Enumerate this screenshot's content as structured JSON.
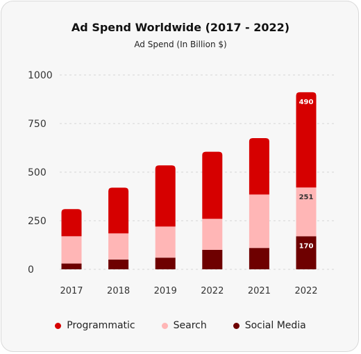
{
  "chart_data": {
    "type": "bar",
    "stacked": true,
    "title": "Ad Spend Worldwide (2017 - 2022)",
    "subtitle": "Ad Spend (In Billion $)",
    "categories": [
      "2017",
      "2018",
      "2019",
      "2022",
      "2021",
      "2022"
    ],
    "ylim": [
      0,
      1000
    ],
    "yticks": [
      0,
      250,
      500,
      750,
      1000
    ],
    "grid": true,
    "legend_position": "bottom",
    "series": [
      {
        "name": "Social Media",
        "color": "#6e0000",
        "values": [
          30,
          50,
          60,
          100,
          110,
          170
        ]
      },
      {
        "name": "Search",
        "color": "#ffb6b6",
        "values": [
          140,
          135,
          160,
          160,
          275,
          251
        ]
      },
      {
        "name": "Programmatic",
        "color": "#d60000",
        "values": [
          140,
          235,
          315,
          345,
          290,
          490
        ]
      }
    ],
    "data_labels": [
      {
        "category_index": 5,
        "series_index": 2,
        "text": "490"
      },
      {
        "category_index": 5,
        "series_index": 1,
        "text": "251"
      },
      {
        "category_index": 5,
        "series_index": 0,
        "text": "170"
      }
    ]
  }
}
